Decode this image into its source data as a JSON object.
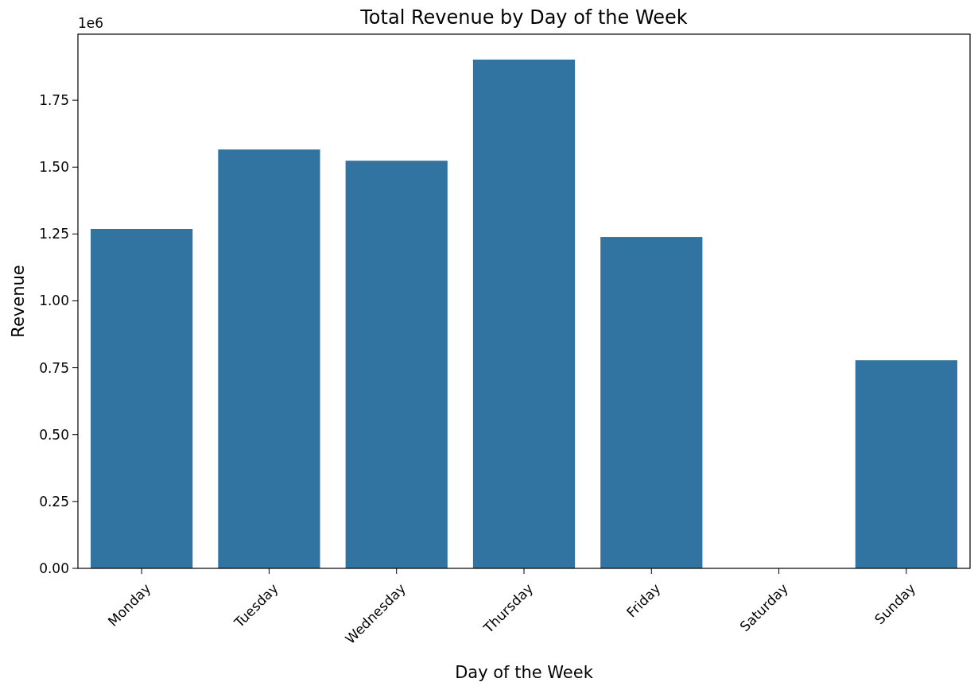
{
  "chart_data": {
    "type": "bar",
    "title": "Total Revenue by Day of the Week",
    "xlabel": "Day of the Week",
    "ylabel": "Revenue",
    "categories": [
      "Monday",
      "Tuesday",
      "Wednesday",
      "Thursday",
      "Friday",
      "Saturday",
      "Sunday"
    ],
    "values": [
      1.269,
      1.566,
      1.524,
      1.902,
      1.239,
      0,
      0.778
    ],
    "color": "#3274a1",
    "ylim": [
      0,
      1.997
    ],
    "yticks": [
      {
        "value": 0,
        "label": "0.00"
      },
      {
        "value": 0.25,
        "label": "0.25"
      },
      {
        "value": 0.5,
        "label": "0.50"
      },
      {
        "value": 0.75,
        "label": "0.75"
      },
      {
        "value": 1,
        "label": "1.00"
      },
      {
        "value": 1.25,
        "label": "1.25"
      },
      {
        "value": 1.5,
        "label": "1.50"
      },
      {
        "value": 1.75,
        "label": "1.75"
      }
    ],
    "annotations": [
      "1e6"
    ]
  }
}
